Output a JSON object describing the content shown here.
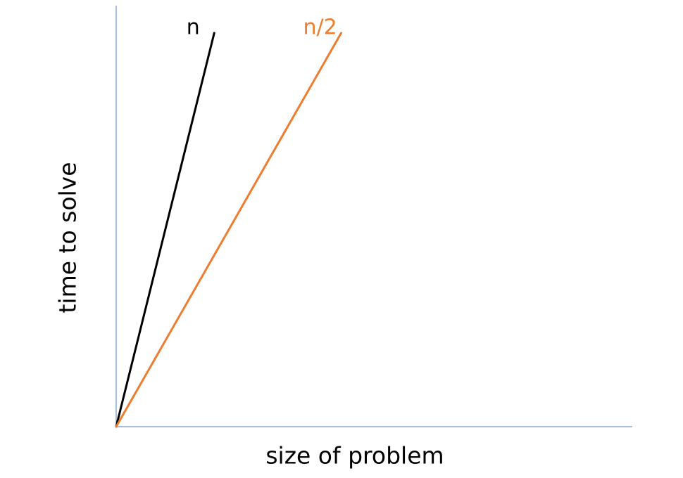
{
  "chart_data": {
    "type": "line",
    "title": "",
    "xlabel": "size of problem",
    "ylabel": "time to solve",
    "xlim": [
      0,
      10
    ],
    "ylim": [
      0,
      10
    ],
    "grid": false,
    "legend": "none",
    "series": [
      {
        "name": "n",
        "color": "#000000",
        "x": [
          0,
          1.9
        ],
        "y": [
          0,
          9.35
        ]
      },
      {
        "name": "n/2",
        "color": "#ed7d31",
        "x": [
          0,
          4.36
        ],
        "y": [
          0,
          9.35
        ]
      }
    ]
  },
  "colors": {
    "axis": "#4a7ebb",
    "background": "#ffffff"
  }
}
